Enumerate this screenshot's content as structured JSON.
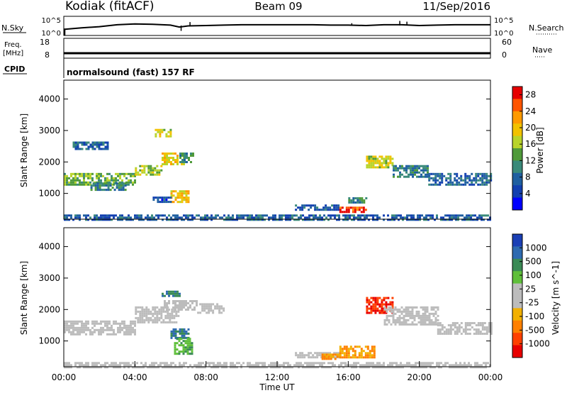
{
  "header": {
    "station": "Kodiak (fitACF)",
    "beam": "Beam 09",
    "date": "11/Sep/2016"
  },
  "panels": {
    "nsky": {
      "left_label": "N.Sky",
      "left_ticks": [
        "10^5",
        "10^0"
      ],
      "right_ticks": [
        "10^5",
        "10^0"
      ],
      "right_label": "N.Search"
    },
    "freq": {
      "left_label_1": "Freq.",
      "left_label_2": "[MHz]",
      "left_ticks": [
        "18",
        "8"
      ],
      "right_ticks": [
        "60",
        "0"
      ],
      "right_label": "Nave"
    },
    "cpid": {
      "label": "CPID",
      "mode_text": "normalsound (fast) 157 RF"
    }
  },
  "power_colorbar": {
    "title": "Power [dB]",
    "tick_labels": [
      "28",
      "24",
      "20",
      "16",
      "12",
      "8",
      "4"
    ],
    "colors": [
      "#e60000",
      "#ff5500",
      "#ff9a00",
      "#f2c200",
      "#b8d42a",
      "#4f9a3a",
      "#3a8a7a",
      "#1f5fa0",
      "#123fb0",
      "#0000ff"
    ]
  },
  "velocity_colorbar": {
    "title": "Velocity [m s^-1]",
    "tick_labels": [
      "1000",
      "500",
      "100",
      "25",
      "-25",
      "-100",
      "-500",
      "-1000"
    ],
    "colors": [
      "#1a3fb5",
      "#2e6ab0",
      "#3a8a55",
      "#5fbf3a",
      "#bcbcbc",
      "#bcbcbc",
      "#f2b000",
      "#ff8000",
      "#ff4000",
      "#e80000"
    ]
  },
  "chart_data": [
    {
      "type": "line",
      "name": "N.Sky / N.Search",
      "x": [
        0,
        1,
        2,
        3,
        4,
        5,
        6,
        6.5,
        7,
        8,
        9,
        10,
        11,
        12,
        13,
        14,
        15,
        16,
        17,
        18,
        19,
        20,
        21,
        22,
        23,
        24
      ],
      "y": [
        1.6,
        2.0,
        2.3,
        2.8,
        3.0,
        2.9,
        2.7,
        2.2,
        2.5,
        2.6,
        2.7,
        2.8,
        2.8,
        2.8,
        2.8,
        2.8,
        2.7,
        2.7,
        2.6,
        2.8,
        2.8,
        2.6,
        2.7,
        2.8,
        2.8,
        2.8
      ],
      "ylim": [
        0,
        5
      ],
      "xlim": [
        0,
        24
      ]
    },
    {
      "type": "line",
      "name": "Freq",
      "x": [
        0,
        24
      ],
      "y": [
        10.5,
        10.5
      ],
      "ylim": [
        8,
        18
      ],
      "xlim": [
        0,
        24
      ]
    },
    {
      "type": "heatmap",
      "name": "Power",
      "xlabel": "",
      "ylabel": "Slant Range [km]",
      "xlim": [
        0,
        24
      ],
      "ylim": [
        180,
        4600
      ],
      "y_ticks": [
        "1000",
        "2000",
        "3000",
        "4000"
      ],
      "y_tick_values": [
        1000,
        2000,
        3000,
        4000
      ],
      "colorbar_range": [
        0,
        30
      ],
      "features": [
        {
          "x0": 0.0,
          "x1": 4.0,
          "y0": 1300,
          "y1": 1650,
          "v": 14
        },
        {
          "x0": 1.5,
          "x1": 3.5,
          "y0": 1100,
          "y1": 1350,
          "v": 10
        },
        {
          "x0": 0.5,
          "x1": 2.5,
          "y0": 2400,
          "y1": 2650,
          "v": 7
        },
        {
          "x0": 4.0,
          "x1": 5.5,
          "y0": 1600,
          "y1": 1900,
          "v": 16
        },
        {
          "x0": 5.0,
          "x1": 6.0,
          "y0": 2800,
          "y1": 3050,
          "v": 18
        },
        {
          "x0": 5.5,
          "x1": 6.8,
          "y0": 1900,
          "y1": 2300,
          "v": 20
        },
        {
          "x0": 6.5,
          "x1": 7.3,
          "y0": 2000,
          "y1": 2300,
          "v": 10
        },
        {
          "x0": 6.0,
          "x1": 7.0,
          "y0": 700,
          "y1": 1100,
          "v": 21
        },
        {
          "x0": 5.0,
          "x1": 6.0,
          "y0": 700,
          "y1": 900,
          "v": 5
        },
        {
          "x0": 13.0,
          "x1": 15.5,
          "y0": 500,
          "y1": 650,
          "v": 6
        },
        {
          "x0": 15.5,
          "x1": 17.0,
          "y0": 400,
          "y1": 580,
          "v": 28
        },
        {
          "x0": 16.0,
          "x1": 17.0,
          "y0": 680,
          "y1": 880,
          "v": 11
        },
        {
          "x0": 17.0,
          "x1": 18.5,
          "y0": 1800,
          "y1": 2200,
          "v": 18
        },
        {
          "x0": 18.5,
          "x1": 20.5,
          "y0": 1500,
          "y1": 1900,
          "v": 9
        },
        {
          "x0": 20.5,
          "x1": 24.0,
          "y0": 1300,
          "y1": 1650,
          "v": 7
        },
        {
          "x0": 0.0,
          "x1": 24.0,
          "y0": 190,
          "y1": 330,
          "v": 6
        }
      ]
    },
    {
      "type": "heatmap",
      "name": "Velocity",
      "xlabel": "Time UT",
      "ylabel": "Slant Range [km]",
      "xlim": [
        0,
        24
      ],
      "ylim": [
        180,
        4600
      ],
      "y_ticks": [
        "1000",
        "2000",
        "3000",
        "4000"
      ],
      "y_tick_values": [
        1000,
        2000,
        3000,
        4000
      ],
      "x_ticks": [
        "00:00",
        "04:00",
        "08:00",
        "12:00",
        "16:00",
        "20:00",
        "00:00"
      ],
      "x_tick_values": [
        0,
        4,
        8,
        12,
        16,
        20,
        24
      ],
      "features": [
        {
          "x0": 0.0,
          "x1": 4.0,
          "y0": 1200,
          "y1": 1650,
          "v": 0
        },
        {
          "x0": 4.0,
          "x1": 6.5,
          "y0": 1600,
          "y1": 2100,
          "v": 0
        },
        {
          "x0": 5.5,
          "x1": 7.5,
          "y0": 2000,
          "y1": 2300,
          "v": 0
        },
        {
          "x0": 7.5,
          "x1": 9.0,
          "y0": 1900,
          "y1": 2200,
          "v": 0
        },
        {
          "x0": 5.5,
          "x1": 6.5,
          "y0": 2400,
          "y1": 2600,
          "v": 150
        },
        {
          "x0": 6.0,
          "x1": 7.0,
          "y0": 1100,
          "y1": 1400,
          "v": 150
        },
        {
          "x0": 6.2,
          "x1": 7.2,
          "y0": 600,
          "y1": 1100,
          "v": 60
        },
        {
          "x0": 13.0,
          "x1": 15.5,
          "y0": 500,
          "y1": 650,
          "v": 0
        },
        {
          "x0": 14.5,
          "x1": 15.5,
          "y0": 400,
          "y1": 600,
          "v": -80
        },
        {
          "x0": 15.5,
          "x1": 17.5,
          "y0": 450,
          "y1": 850,
          "v": -80
        },
        {
          "x0": 17.0,
          "x1": 18.5,
          "y0": 1900,
          "y1": 2400,
          "v": -300
        },
        {
          "x0": 18.0,
          "x1": 21.0,
          "y0": 1500,
          "y1": 2100,
          "v": 0
        },
        {
          "x0": 21.0,
          "x1": 24.0,
          "y0": 1200,
          "y1": 1600,
          "v": 0
        },
        {
          "x0": 0.0,
          "x1": 24.0,
          "y0": 190,
          "y1": 330,
          "v": 0
        }
      ]
    }
  ]
}
